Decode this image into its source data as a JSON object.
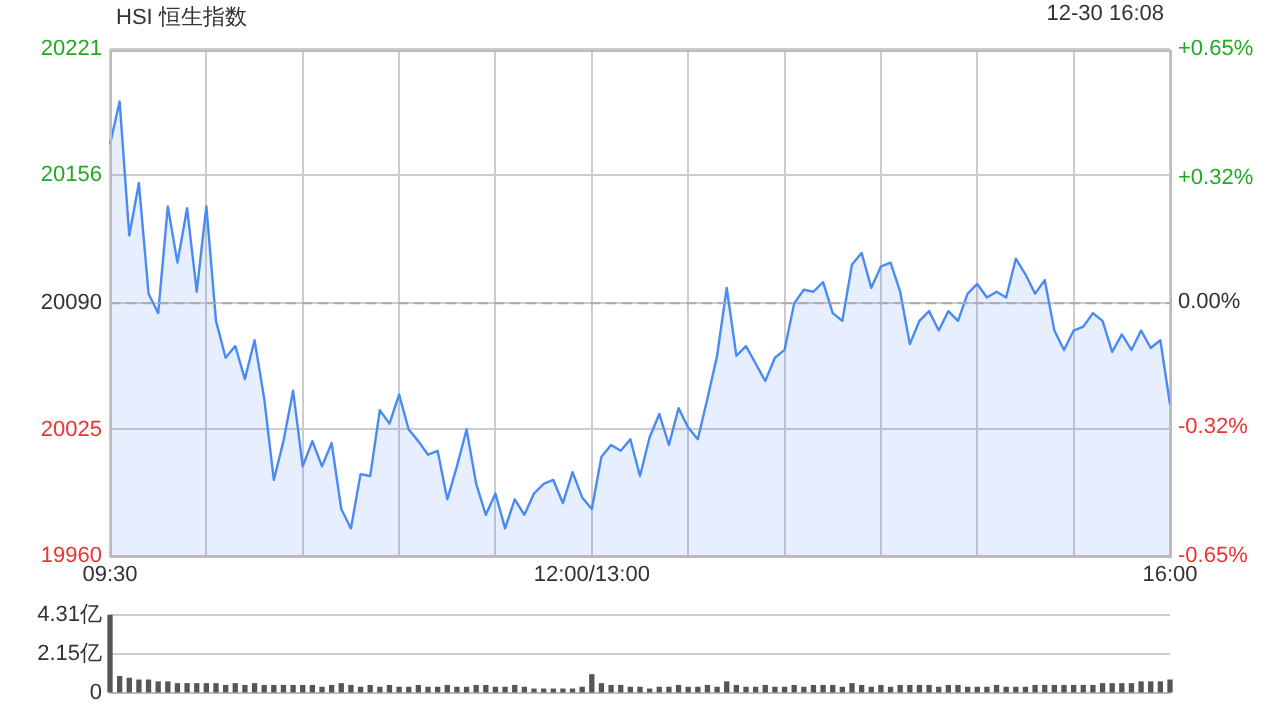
{
  "chart_data": [
    {
      "type": "area",
      "title": "HSI 恒生指数",
      "subtitle": "12-30 16:08",
      "categories": [
        "09:30",
        null,
        null,
        null,
        null,
        null,
        null,
        null,
        null,
        null,
        null,
        null,
        null,
        null,
        null,
        null,
        null,
        null,
        null,
        null,
        null,
        null,
        null,
        null,
        null,
        null,
        null,
        null,
        null,
        null,
        null,
        null,
        null,
        null,
        null,
        null,
        null,
        null,
        null,
        null,
        null,
        null,
        null,
        null,
        null,
        null,
        null,
        null,
        null,
        null,
        "12:00/13:00",
        null,
        null,
        null,
        null,
        null,
        null,
        null,
        null,
        null,
        null,
        null,
        null,
        null,
        null,
        null,
        null,
        null,
        null,
        null,
        null,
        null,
        null,
        null,
        null,
        null,
        null,
        null,
        null,
        null,
        null,
        null,
        null,
        null,
        null,
        null,
        null,
        null,
        null,
        null,
        null,
        null,
        null,
        null,
        null,
        null,
        null,
        null,
        null,
        null,
        null,
        null,
        null,
        null,
        null,
        null,
        null,
        null,
        null,
        null,
        "16:00"
      ],
      "series": [
        {
          "color": "#4a8af4",
          "values": [
            20172,
            20194,
            20125,
            20152,
            20095,
            20085,
            20140,
            20111,
            20139,
            20096,
            20140,
            20081,
            20062,
            20068,
            20051,
            20071,
            20041,
            19999,
            20019,
            20045,
            20006,
            20019,
            20006,
            20018,
            19984,
            19974,
            20002,
            20001,
            20035,
            20028,
            20043,
            20025,
            20019,
            20012,
            20014,
            19989,
            20006,
            20025,
            19997,
            19981,
            19992,
            19974,
            19989,
            19981,
            19992,
            19997,
            19999,
            19987,
            20003,
            19990,
            19984,
            20011,
            20017,
            20014,
            20020,
            20001,
            20021,
            20033,
            20017,
            20036,
            20026,
            20020,
            20041,
            20063,
            20098,
            20063,
            20068,
            20059,
            20050,
            20062,
            20066,
            20090,
            20097,
            20096,
            20101,
            20085,
            20081,
            20110,
            20116,
            20098,
            20109,
            20111,
            20096,
            20069,
            20081,
            20086,
            20076,
            20086,
            20081,
            20095,
            20100,
            20093,
            20096,
            20093,
            20113,
            20105,
            20095,
            20102,
            20076,
            20066,
            20076,
            20078,
            20085,
            20081,
            20065,
            20074,
            20066,
            20076,
            20067,
            20071,
            20038
          ]
        }
      ],
      "ylim": [
        19960,
        20221
      ],
      "yticks": [
        19960,
        20025,
        20090,
        20156,
        20221
      ],
      "y2lim": [
        -0.65,
        0.65
      ],
      "y2ticks": [
        {
          "value": -0.65,
          "label": "-0.65%"
        },
        {
          "value": -0.32,
          "label": "-0.32%"
        },
        {
          "value": 0,
          "label": "0.00%"
        },
        {
          "value": 0.32,
          "label": "+0.32%"
        },
        {
          "value": 0.65,
          "label": "+0.65%"
        }
      ],
      "ref_lines": [
        {
          "axis": "y",
          "value": 20090,
          "color": "#aaaaaa",
          "line_style": "dashed"
        }
      ],
      "grid": true,
      "legend": false,
      "marker": "none"
    },
    {
      "type": "bar",
      "categories": [
        null,
        null,
        null,
        null,
        null,
        null,
        null,
        null,
        null,
        null,
        null,
        null,
        null,
        null,
        null,
        null,
        null,
        null,
        null,
        null,
        null,
        null,
        null,
        null,
        null,
        null,
        null,
        null,
        null,
        null,
        null,
        null,
        null,
        null,
        null,
        null,
        null,
        null,
        null,
        null,
        null,
        null,
        null,
        null,
        null,
        null,
        null,
        null,
        null,
        null,
        null,
        null,
        null,
        null,
        null,
        null,
        null,
        null,
        null,
        null,
        null,
        null,
        null,
        null,
        null,
        null,
        null,
        null,
        null,
        null,
        null,
        null,
        null,
        null,
        null,
        null,
        null,
        null,
        null,
        null,
        null,
        null,
        null,
        null,
        null,
        null,
        null,
        null,
        null,
        null,
        null,
        null,
        null,
        null,
        null,
        null,
        null,
        null,
        null,
        null,
        null,
        null,
        null,
        null,
        null,
        null,
        null,
        null,
        null,
        null,
        null
      ],
      "series": [
        {
          "color": "#555555",
          "values": [
            4.3,
            0.9,
            0.8,
            0.7,
            0.7,
            0.6,
            0.6,
            0.5,
            0.5,
            0.5,
            0.5,
            0.5,
            0.4,
            0.5,
            0.4,
            0.5,
            0.4,
            0.4,
            0.4,
            0.4,
            0.4,
            0.4,
            0.3,
            0.4,
            0.5,
            0.4,
            0.3,
            0.4,
            0.3,
            0.4,
            0.3,
            0.3,
            0.4,
            0.3,
            0.3,
            0.4,
            0.3,
            0.3,
            0.4,
            0.4,
            0.3,
            0.3,
            0.4,
            0.3,
            0.2,
            0.2,
            0.2,
            0.2,
            0.2,
            0.3,
            1.0,
            0.5,
            0.4,
            0.4,
            0.3,
            0.3,
            0.2,
            0.3,
            0.3,
            0.4,
            0.3,
            0.3,
            0.4,
            0.3,
            0.6,
            0.4,
            0.3,
            0.3,
            0.4,
            0.3,
            0.3,
            0.4,
            0.3,
            0.4,
            0.4,
            0.4,
            0.3,
            0.5,
            0.4,
            0.3,
            0.4,
            0.3,
            0.4,
            0.4,
            0.4,
            0.4,
            0.3,
            0.4,
            0.4,
            0.3,
            0.3,
            0.3,
            0.4,
            0.3,
            0.3,
            0.3,
            0.4,
            0.4,
            0.4,
            0.4,
            0.4,
            0.4,
            0.4,
            0.5,
            0.5,
            0.5,
            0.5,
            0.6,
            0.6,
            0.6,
            0.7
          ]
        }
      ],
      "ylim": [
        0,
        4.31
      ],
      "yticks": [
        0,
        {
          "value": 2.15,
          "label": "2.15亿"
        },
        {
          "value": 4.31,
          "label": "4.31亿"
        }
      ],
      "grid": "y",
      "legend": false,
      "tick_labels": "y"
    }
  ]
}
